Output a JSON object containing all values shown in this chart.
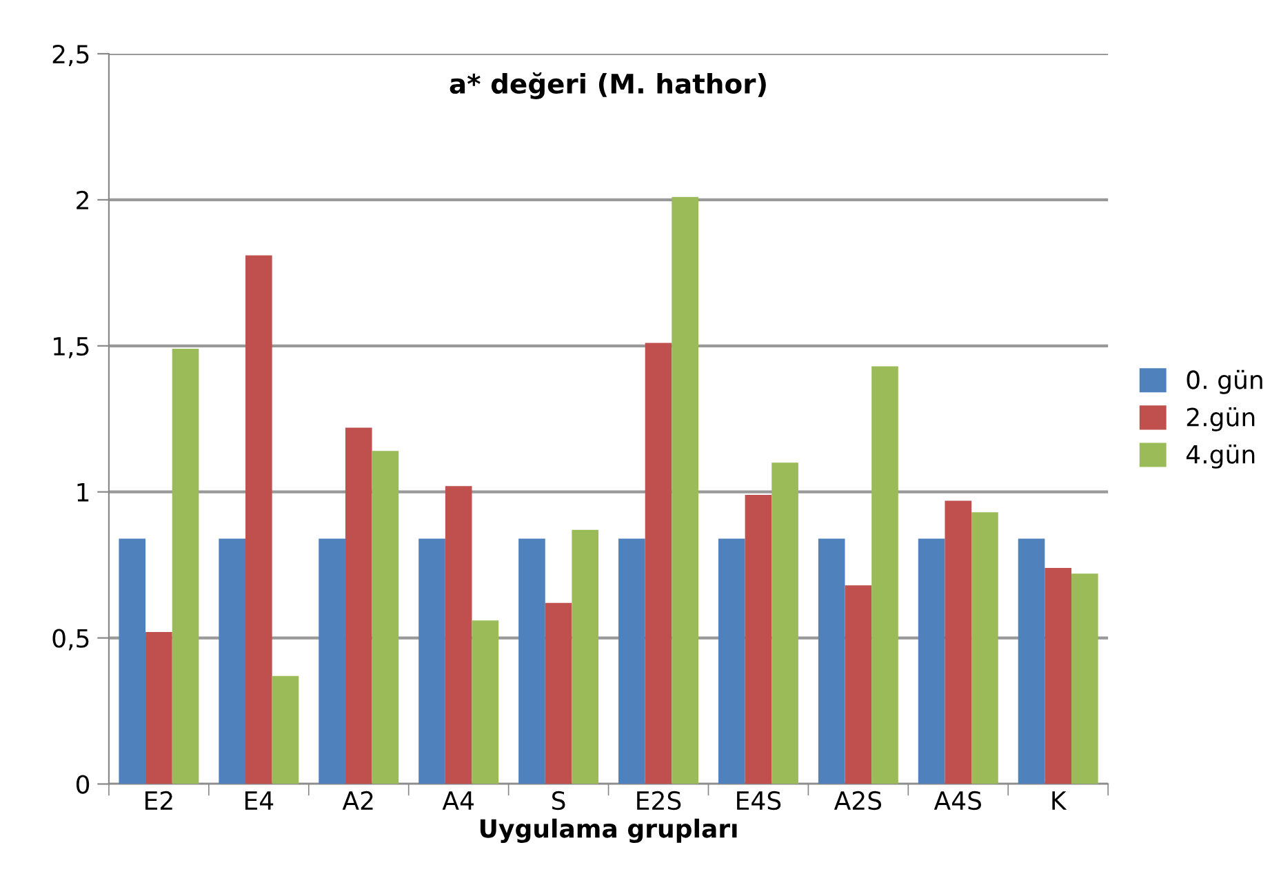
{
  "chart_data": {
    "type": "bar",
    "title": "a* değeri (M. hathor)",
    "xlabel": "Uygulama grupları",
    "categories": [
      "E2",
      "E4",
      "A2",
      "A4",
      "S",
      "E2S",
      "E4S",
      "A2S",
      "A4S",
      "K"
    ],
    "series": [
      {
        "name": "0. gün",
        "color": "#4f81bd",
        "values": [
          0.84,
          0.84,
          0.84,
          0.84,
          0.84,
          0.84,
          0.84,
          0.84,
          0.84,
          0.84
        ]
      },
      {
        "name": "2.gün",
        "color": "#c0504d",
        "values": [
          0.52,
          1.81,
          1.22,
          1.02,
          0.62,
          1.51,
          0.99,
          0.68,
          0.97,
          0.74
        ]
      },
      {
        "name": "4.gün",
        "color": "#9bbb59",
        "values": [
          1.49,
          0.37,
          1.14,
          0.56,
          0.87,
          2.01,
          1.1,
          1.43,
          0.93,
          0.72
        ]
      }
    ],
    "ylim": [
      0,
      2.5
    ],
    "yticks": [
      0,
      {
        "value": 0.5,
        "label": "0,5"
      },
      1,
      {
        "value": 1.5,
        "label": "1,5"
      },
      2,
      {
        "value": 2.5,
        "label": "2,5"
      }
    ],
    "grid": "y",
    "legend": "right"
  }
}
